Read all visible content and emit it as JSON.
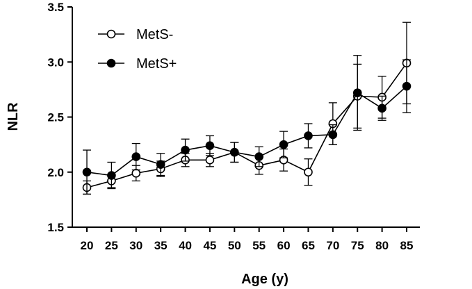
{
  "chart_data": {
    "type": "line",
    "xlabel": "Age (y)",
    "ylabel": "NLR",
    "ylim": [
      1.5,
      3.5
    ],
    "yticks": [
      1.5,
      2.0,
      2.5,
      3.0,
      3.5
    ],
    "ytick_labels": [
      "1.5",
      "2.0",
      "2.5",
      "3.0",
      "3.5"
    ],
    "x": [
      20,
      25,
      30,
      35,
      40,
      45,
      50,
      55,
      60,
      65,
      70,
      75,
      80,
      85
    ],
    "xtick_labels": [
      "20",
      "25",
      "30",
      "35",
      "40",
      "45",
      "50",
      "55",
      "60",
      "65",
      "70",
      "75",
      "80",
      "85"
    ],
    "legend_position": "top-left",
    "series": [
      {
        "name": "MetS-",
        "marker": "open-circle",
        "values": [
          1.86,
          1.92,
          1.99,
          2.03,
          2.11,
          2.11,
          2.18,
          2.06,
          2.11,
          2.0,
          2.44,
          2.69,
          2.68,
          2.99
        ],
        "errors": [
          0.06,
          0.06,
          0.07,
          0.07,
          0.06,
          0.06,
          0.09,
          0.08,
          0.1,
          0.12,
          0.19,
          0.29,
          0.19,
          0.37
        ]
      },
      {
        "name": "MetS+",
        "marker": "filled-circle",
        "values": [
          2.0,
          1.97,
          2.14,
          2.07,
          2.2,
          2.24,
          2.18,
          2.14,
          2.25,
          2.33,
          2.34,
          2.72,
          2.58,
          2.78
        ],
        "errors": [
          0.2,
          0.12,
          0.12,
          0.1,
          0.1,
          0.09,
          0.09,
          0.09,
          0.12,
          0.11,
          0.09,
          0.34,
          0.11,
          0.24
        ]
      }
    ]
  }
}
